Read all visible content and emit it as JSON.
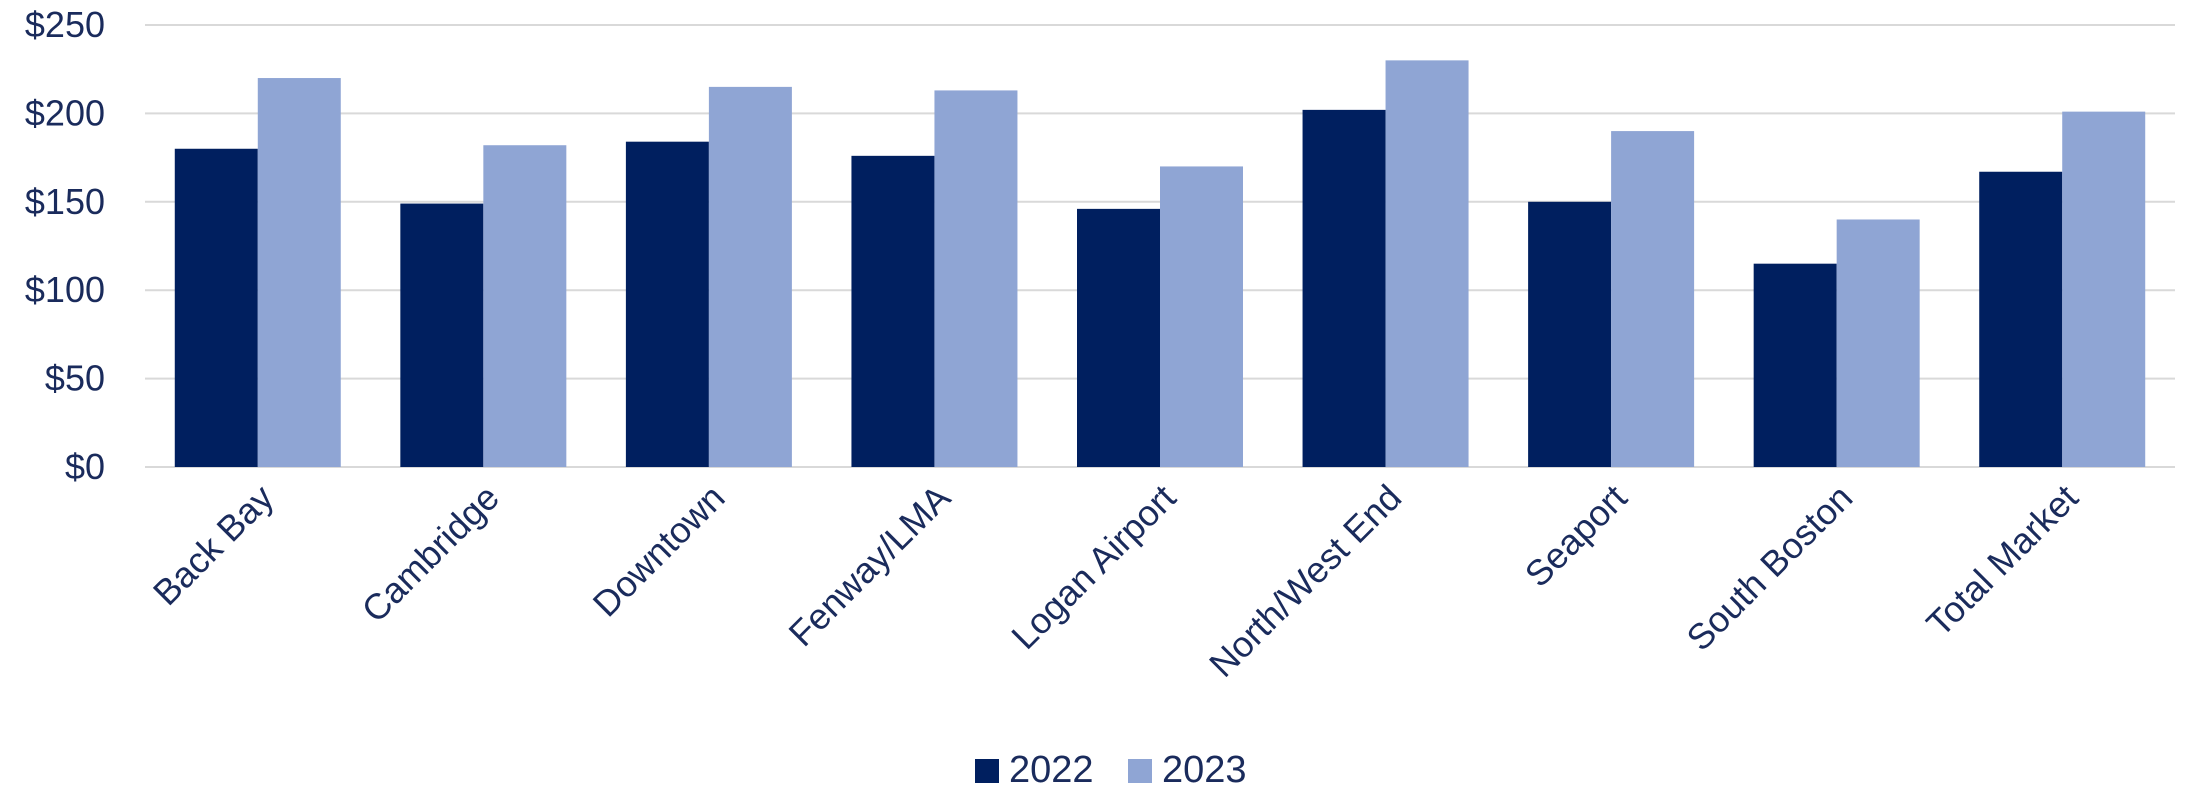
{
  "chart_data": {
    "type": "bar",
    "title": "",
    "xlabel": "",
    "ylabel": "",
    "categories": [
      "Back Bay",
      "Cambridge",
      "Downtown",
      "Fenway/LMA",
      "Logan Airport",
      "North/West End",
      "Seaport",
      "South Boston",
      "Total Market"
    ],
    "series": [
      {
        "name": "2022",
        "color": "#001f5f",
        "values": [
          180,
          149,
          184,
          176,
          146,
          202,
          150,
          115,
          167
        ]
      },
      {
        "name": "2023",
        "color": "#8fa5d4",
        "values": [
          220,
          182,
          215,
          213,
          170,
          230,
          190,
          140,
          201
        ]
      }
    ],
    "ylim": [
      0,
      250
    ],
    "yticks": [
      0,
      50,
      100,
      150,
      200,
      250
    ],
    "ytick_labels": [
      "$0",
      "$50",
      "$100",
      "$150",
      "$200",
      "$250"
    ],
    "grid": true,
    "legend_position": "bottom"
  }
}
